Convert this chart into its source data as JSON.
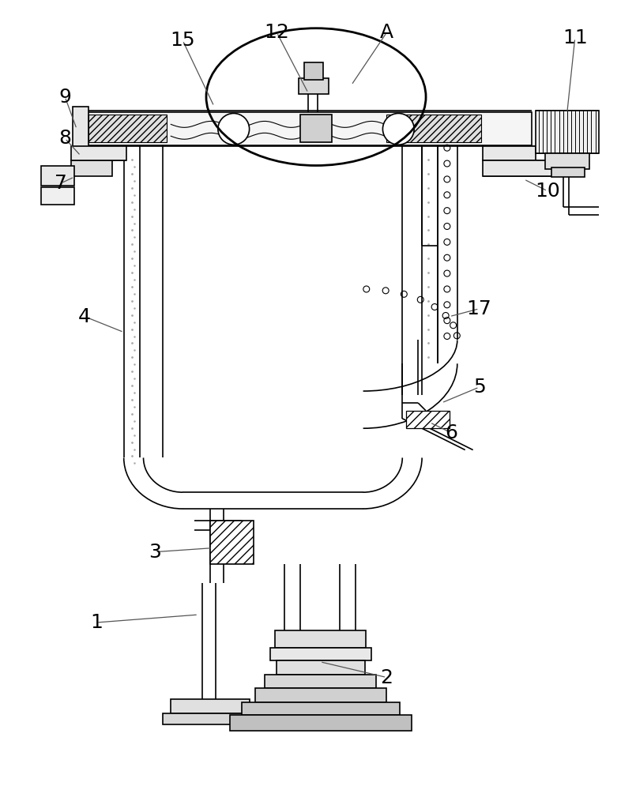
{
  "bg_color": "#ffffff",
  "line_color": "#000000",
  "lw": 1.2,
  "fig_width": 8.05,
  "fig_height": 10.0
}
